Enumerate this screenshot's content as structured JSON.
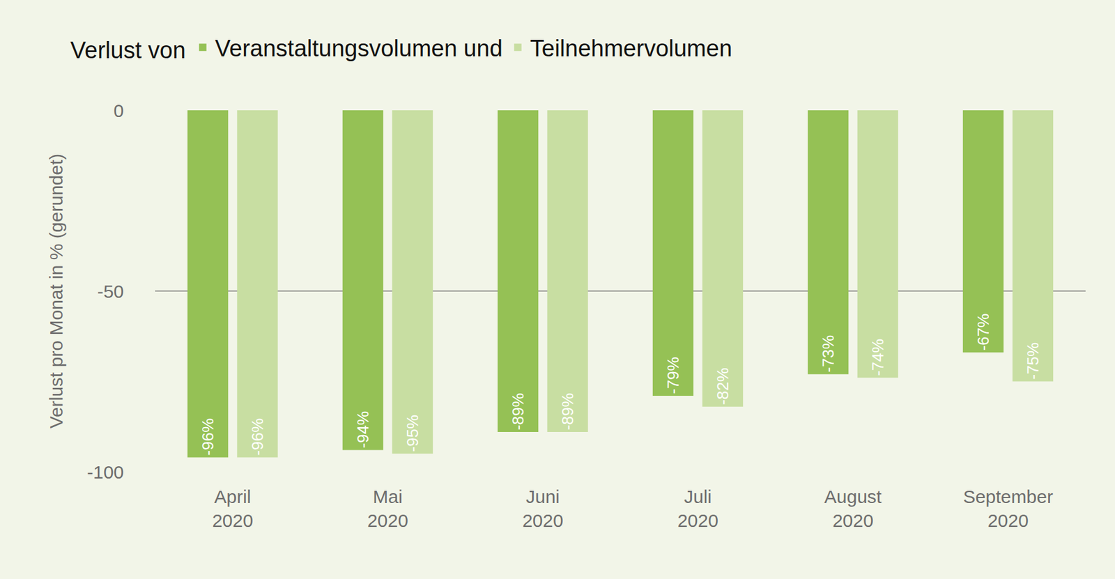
{
  "chart_data": {
    "type": "bar",
    "legend_title": "Verlust von",
    "y_label": "Verlust pro Monat in % (gerundet)",
    "categories": [
      "April 2020",
      "Mai 2020",
      "Juni 2020",
      "Juli 2020",
      "August 2020",
      "September 2020"
    ],
    "series": [
      {
        "name": "Veranstaltungsvolumen und",
        "color": "#95c155",
        "values": [
          -96,
          -94,
          -89,
          -79,
          -73,
          -67
        ],
        "value_labels": [
          "-96%",
          "-94%",
          "-89%",
          "-79%",
          "-73%",
          "-67%"
        ]
      },
      {
        "name": "Teilnehmervolumen",
        "color": "#c8dea2",
        "values": [
          -96,
          -95,
          -89,
          -82,
          -74,
          -75
        ],
        "value_labels": [
          "-96%",
          "-95%",
          "-89%",
          "-82%",
          "-74%",
          "-75%"
        ]
      }
    ],
    "ylim": [
      -100,
      0
    ],
    "yticks": [
      -100,
      -50,
      0
    ],
    "grid": true,
    "data_labels": true,
    "legend": "top"
  }
}
